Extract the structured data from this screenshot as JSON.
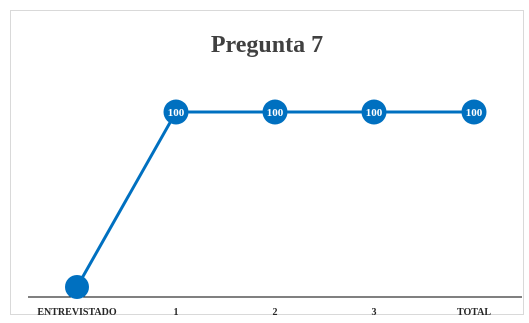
{
  "chart_data": {
    "type": "line",
    "title": "Pregunta 7",
    "categories": [
      "ENTREVISTADO",
      "1",
      "2",
      "3",
      "TOTAL"
    ],
    "series": [
      {
        "values": [
          0,
          100,
          100,
          100,
          100
        ],
        "data_labels": [
          "",
          "100",
          "100",
          "100",
          "100"
        ]
      }
    ],
    "xlabel": "",
    "ylabel": "",
    "ylim": [
      0,
      100
    ],
    "grid": false,
    "legend": "none",
    "colors": {
      "line": "#0070c0",
      "marker": "#0070c0",
      "label_text": "#ffffff",
      "axis": "#000000",
      "border": "#d9d9d9"
    }
  }
}
